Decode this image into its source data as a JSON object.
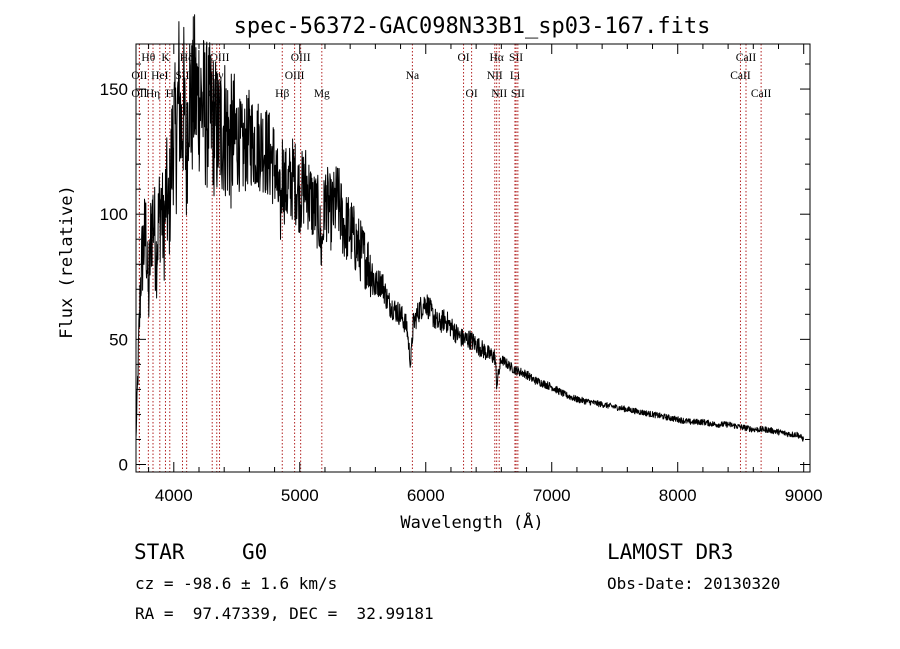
{
  "chart_data": {
    "type": "line",
    "title": "spec-56372-GAC098N33B1_sp03-167.fits",
    "xlabel": "Wavelength (Å)",
    "ylabel": "Flux (relative)",
    "xlim": [
      3700,
      9050
    ],
    "ylim": [
      -3,
      168
    ],
    "xticks": [
      4000,
      5000,
      6000,
      7000,
      8000,
      9000
    ],
    "yticks": [
      0,
      50,
      100,
      150
    ],
    "series": [
      {
        "name": "flux",
        "x": [
          3700,
          3720,
          3740,
          3760,
          3780,
          3800,
          3820,
          3840,
          3860,
          3880,
          3900,
          3920,
          3940,
          3960,
          3980,
          4000,
          4020,
          4040,
          4060,
          4080,
          4100,
          4120,
          4140,
          4160,
          4180,
          4200,
          4250,
          4300,
          4350,
          4400,
          4450,
          4500,
          4550,
          4600,
          4650,
          4700,
          4750,
          4800,
          4850,
          4861,
          4880,
          4900,
          4950,
          5000,
          5050,
          5100,
          5150,
          5172,
          5200,
          5250,
          5300,
          5350,
          5400,
          5450,
          5500,
          5550,
          5600,
          5650,
          5700,
          5750,
          5800,
          5850,
          5880,
          5900,
          5950,
          6000,
          6050,
          6100,
          6150,
          6200,
          6250,
          6300,
          6350,
          6400,
          6450,
          6500,
          6550,
          6563,
          6600,
          6650,
          6700,
          6750,
          6800,
          6850,
          6900,
          6950,
          7000,
          7100,
          7200,
          7300,
          7400,
          7500,
          7600,
          7700,
          7800,
          7900,
          8000,
          8100,
          8200,
          8300,
          8400,
          8500,
          8600,
          8700,
          8800,
          8900,
          8950,
          9000
        ],
        "y": [
          10,
          45,
          78,
          88,
          92,
          65,
          95,
          100,
          82,
          98,
          105,
          90,
          110,
          97,
          120,
          135,
          128,
          150,
          132,
          145,
          118,
          155,
          140,
          150,
          145,
          148,
          140,
          138,
          132,
          136,
          128,
          130,
          125,
          131,
          128,
          128,
          124,
          120,
          100,
          118,
          112,
          110,
          115,
          108,
          112,
          104,
          100,
          85,
          106,
          100,
          106,
          95,
          94,
          88,
          84,
          80,
          72,
          73,
          65,
          62,
          60,
          55,
          40,
          56,
          62,
          65,
          60,
          56,
          58,
          55,
          52,
          50,
          50,
          48,
          46,
          44,
          43,
          32,
          42,
          40,
          38,
          37,
          36,
          34,
          33,
          32,
          31,
          28,
          26,
          25,
          24,
          23,
          22,
          21,
          20,
          19,
          18,
          17,
          17,
          16,
          16,
          15,
          14,
          14,
          13,
          12,
          12,
          10
        ]
      }
    ],
    "annotations": [
      {
        "label": "Hθ",
        "x": 3798,
        "row": 1
      },
      {
        "label": "OII",
        "x": 3727,
        "row": 2
      },
      {
        "label": "OII",
        "x": 3727,
        "row": 3
      },
      {
        "label": "Hη",
        "x": 3835,
        "row": 3
      },
      {
        "label": "K",
        "x": 3934,
        "row": 1
      },
      {
        "label": "H",
        "x": 3968,
        "row": 3
      },
      {
        "label": "HeI",
        "x": 3889,
        "row": 2
      },
      {
        "label": "SII",
        "x": 4069,
        "row": 2
      },
      {
        "label": "Hδ",
        "x": 4102,
        "row": 1
      },
      {
        "label": "OIII",
        "x": 4363,
        "row": 1
      },
      {
        "label": "Hγ",
        "x": 4341,
        "row": 2
      },
      {
        "label": "G",
        "x": 4305,
        "row": 3
      },
      {
        "label": "Hβ",
        "x": 4861,
        "row": 3
      },
      {
        "label": "OIII",
        "x": 5007,
        "row": 1
      },
      {
        "label": "OIII",
        "x": 4959,
        "row": 2
      },
      {
        "label": "Mg",
        "x": 5175,
        "row": 3
      },
      {
        "label": "Na",
        "x": 5894,
        "row": 2
      },
      {
        "label": "OI",
        "x": 6300,
        "row": 1
      },
      {
        "label": "OI",
        "x": 6364,
        "row": 3
      },
      {
        "label": "Hα",
        "x": 6563,
        "row": 1
      },
      {
        "label": "NII",
        "x": 6548,
        "row": 2
      },
      {
        "label": "NII",
        "x": 6583,
        "row": 3
      },
      {
        "label": "SII",
        "x": 6717,
        "row": 1
      },
      {
        "label": "Li",
        "x": 6708,
        "row": 2
      },
      {
        "label": "SII",
        "x": 6731,
        "row": 3
      },
      {
        "label": "CaII",
        "x": 8542,
        "row": 1
      },
      {
        "label": "CaII",
        "x": 8498,
        "row": 2
      },
      {
        "label": "CaII",
        "x": 8662,
        "row": 3
      }
    ],
    "line_color": "#000000",
    "marker_color": "#b22222"
  },
  "info": {
    "class": "STAR",
    "subclass": "G0",
    "survey": "LAMOST DR3",
    "cz": "cz = -98.6 ± 1.6 km/s",
    "obsdate": "Obs-Date: 20130320",
    "radec": "RA =  97.47339, DEC =  32.99181"
  }
}
